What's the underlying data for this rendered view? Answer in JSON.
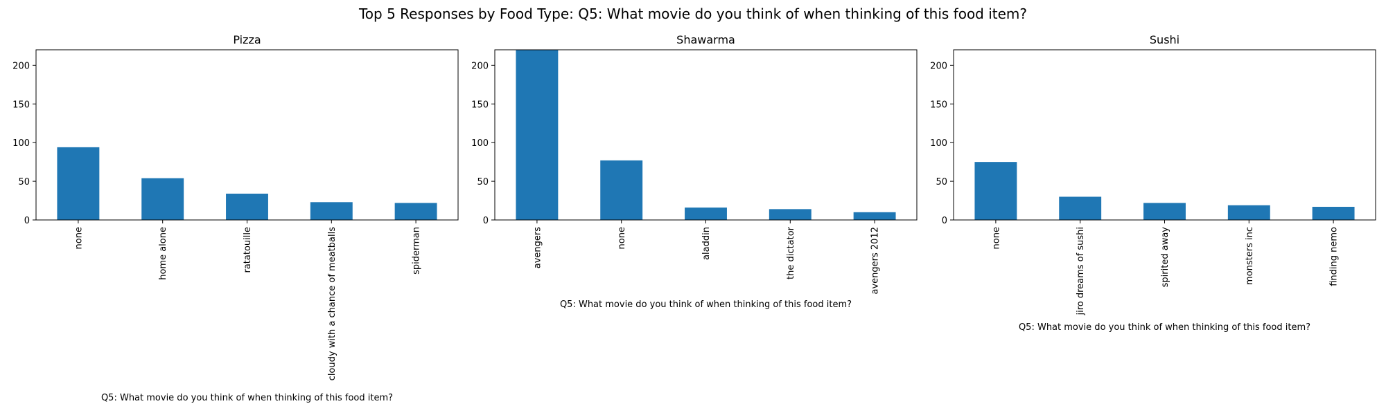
{
  "suptitle": "Top 5 Responses by Food Type: Q5: What movie do you think of when thinking of this food item?",
  "colors": {
    "bar": "#1f77b4",
    "axis": "#000000",
    "background": "#ffffff"
  },
  "chart_data": [
    {
      "type": "bar",
      "title": "Pizza",
      "xlabel": "Q5: What movie do you think of when thinking of this food item?",
      "ylabel": "",
      "categories": [
        "none",
        "home alone",
        "ratatouille",
        "cloudy with a chance of meatballs",
        "spiderman"
      ],
      "values": [
        94,
        54,
        34,
        23,
        22
      ],
      "ylim": [
        0,
        220
      ],
      "yticks": [
        0,
        50,
        100,
        150,
        200
      ],
      "grid": false,
      "legend": "none"
    },
    {
      "type": "bar",
      "title": "Shawarma",
      "xlabel": "Q5: What movie do you think of when thinking of this food item?",
      "ylabel": "",
      "categories": [
        "avengers",
        "none",
        "aladdin",
        "the dictator",
        "avengers 2012"
      ],
      "values": [
        220,
        77,
        16,
        14,
        10
      ],
      "ylim": [
        0,
        220
      ],
      "yticks": [
        0,
        50,
        100,
        150,
        200
      ],
      "grid": false,
      "legend": "none"
    },
    {
      "type": "bar",
      "title": "Sushi",
      "xlabel": "Q5: What movie do you think of when thinking of this food item?",
      "ylabel": "",
      "categories": [
        "none",
        "jiro dreams of sushi",
        "spirited away",
        "monsters inc",
        "finding nemo"
      ],
      "values": [
        75,
        30,
        22,
        19,
        17
      ],
      "ylim": [
        0,
        220
      ],
      "yticks": [
        0,
        50,
        100,
        150,
        200
      ],
      "grid": false,
      "legend": "none"
    }
  ]
}
